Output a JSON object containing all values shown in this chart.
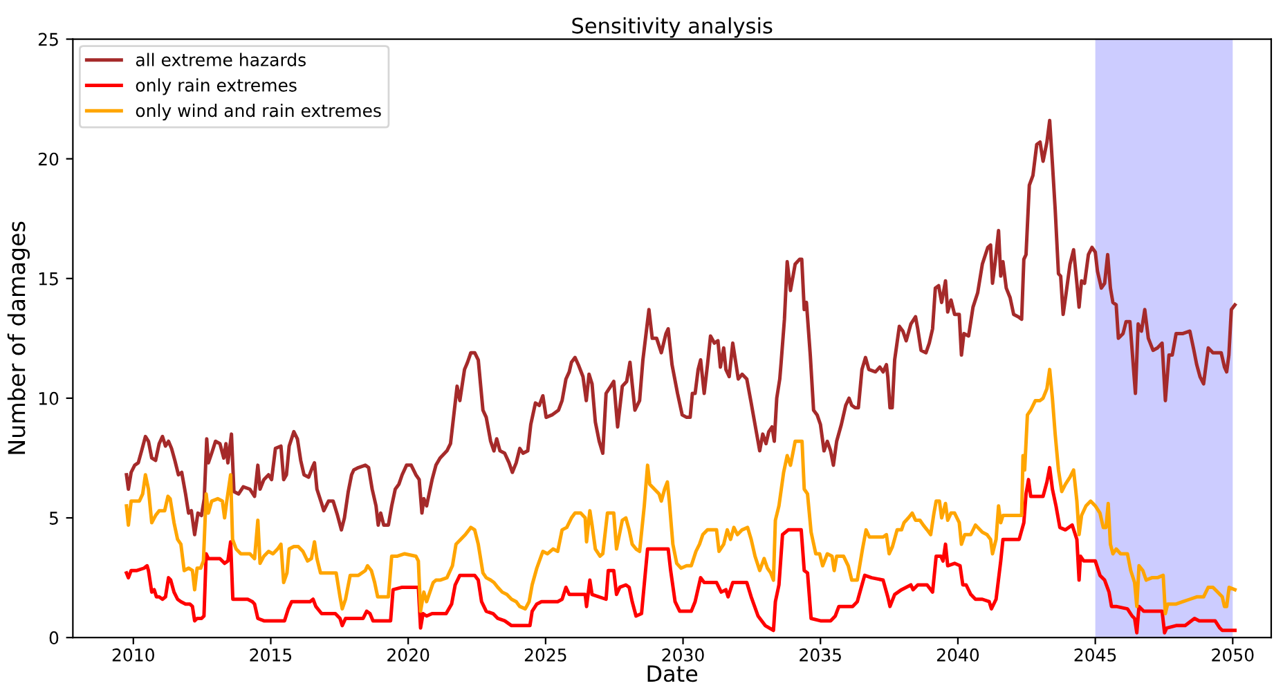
{
  "chart_data": {
    "type": "line",
    "title": "Sensitivity analysis",
    "xlabel": "Date",
    "ylabel": "Number of damages",
    "xlim": [
      2007.8,
      2051.4
    ],
    "xticks": [
      2010,
      2015,
      2020,
      2025,
      2030,
      2035,
      2040,
      2045,
      2050
    ],
    "ylim": [
      0,
      25
    ],
    "yticks": [
      0,
      5,
      10,
      15,
      20,
      25
    ],
    "legend": "top left",
    "bands": [
      {
        "axis": "x",
        "from": 2045,
        "to": 2050,
        "color": "#ccccff"
      }
    ],
    "series": [
      {
        "name": "all extreme hazards",
        "color": "#a52a2a",
        "x": [
          2009.75,
          2009.82,
          2009.92,
          2010.05,
          2010.18,
          2010.3,
          2010.44,
          2010.55,
          2010.67,
          2010.81,
          2010.94,
          2011.06,
          2011.17,
          2011.28,
          2011.39,
          2011.51,
          2011.64,
          2011.76,
          2011.9,
          2012.01,
          2012.11,
          2012.23,
          2012.35,
          2012.48,
          2012.58,
          2012.67,
          2012.73,
          2012.85,
          2012.99,
          2013.15,
          2013.29,
          2013.37,
          2013.44,
          2013.57,
          2013.66,
          2013.83,
          2014.0,
          2014.24,
          2014.41,
          2014.53,
          2014.61,
          2014.75,
          2014.92,
          2015.03,
          2015.17,
          2015.37,
          2015.47,
          2015.57,
          2015.67,
          2015.84,
          2015.97,
          2016.09,
          2016.21,
          2016.38,
          2016.51,
          2016.59,
          2016.68,
          2016.85,
          2016.93,
          2017.1,
          2017.27,
          2017.43,
          2017.57,
          2017.68,
          2017.82,
          2017.94,
          2018.02,
          2018.19,
          2018.44,
          2018.56,
          2018.69,
          2018.83,
          2018.91,
          2019.0,
          2019.11,
          2019.28,
          2019.4,
          2019.53,
          2019.66,
          2019.78,
          2019.94,
          2020.11,
          2020.28,
          2020.4,
          2020.5,
          2020.57,
          2020.67,
          2020.87,
          2021.01,
          2021.16,
          2021.41,
          2021.54,
          2021.66,
          2021.78,
          2021.88,
          2022.05,
          2022.16,
          2022.28,
          2022.42,
          2022.55,
          2022.72,
          2022.84,
          2023.0,
          2023.12,
          2023.22,
          2023.34,
          2023.51,
          2023.67,
          2023.79,
          2023.93,
          2024.06,
          2024.18,
          2024.35,
          2024.46,
          2024.63,
          2024.77,
          2024.9,
          2025.02,
          2025.23,
          2025.47,
          2025.6,
          2025.74,
          2025.86,
          2025.94,
          2026.07,
          2026.19,
          2026.36,
          2026.48,
          2026.58,
          2026.69,
          2026.81,
          2026.95,
          2027.08,
          2027.2,
          2027.37,
          2027.48,
          2027.62,
          2027.79,
          2027.95,
          2028.07,
          2028.15,
          2028.25,
          2028.42,
          2028.54,
          2028.76,
          2028.88,
          2029.04,
          2029.21,
          2029.38,
          2029.46,
          2029.6,
          2029.8,
          2029.97,
          2030.13,
          2030.26,
          2030.34,
          2030.44,
          2030.55,
          2030.64,
          2030.77,
          2030.89,
          2031.0,
          2031.14,
          2031.27,
          2031.36,
          2031.48,
          2031.56,
          2031.68,
          2031.81,
          2031.93,
          2032.01,
          2032.15,
          2032.32,
          2032.48,
          2032.65,
          2032.79,
          2032.9,
          2033.02,
          2033.12,
          2033.24,
          2033.32,
          2033.41,
          2033.52,
          2033.57,
          2033.69,
          2033.79,
          2033.91,
          2034.08,
          2034.24,
          2034.32,
          2034.41,
          2034.49,
          2034.63,
          2034.75,
          2034.88,
          2035.0,
          2035.13,
          2035.25,
          2035.37,
          2035.47,
          2035.59,
          2035.76,
          2035.92,
          2036.04,
          2036.14,
          2036.26,
          2036.38,
          2036.51,
          2036.64,
          2036.76,
          2037.0,
          2037.16,
          2037.28,
          2037.4,
          2037.45,
          2037.53,
          2037.61,
          2037.7,
          2037.87,
          2038.0,
          2038.12,
          2038.29,
          2038.46,
          2038.54,
          2038.66,
          2038.84,
          2038.96,
          2039.08,
          2039.18,
          2039.3,
          2039.41,
          2039.55,
          2039.63,
          2039.75,
          2039.88,
          2040.05,
          2040.13,
          2040.22,
          2040.39,
          2040.55,
          2040.72,
          2040.89,
          2041.09,
          2041.19,
          2041.26,
          2041.36,
          2041.48,
          2041.56,
          2041.64,
          2041.76,
          2041.9,
          2042.03,
          2042.2,
          2042.32,
          2042.4,
          2042.48,
          2042.6,
          2042.73,
          2042.87,
          2042.99,
          2043.1,
          2043.24,
          2043.34,
          2043.44,
          2043.54,
          2043.66,
          2043.74,
          2043.83,
          2043.94,
          2044.08,
          2044.21,
          2044.33,
          2044.41,
          2044.5,
          2044.61,
          2044.75,
          2044.88,
          2045.0,
          2045.08,
          2045.22,
          2045.34,
          2045.45,
          2045.55,
          2045.64,
          2045.76,
          2045.84,
          2046.01,
          2046.12,
          2046.26,
          2046.34,
          2046.46,
          2046.56,
          2046.68,
          2046.8,
          2046.93,
          2047.1,
          2047.26,
          2047.43,
          2047.55,
          2047.68,
          2047.8,
          2047.94,
          2048.19,
          2048.44,
          2048.57,
          2048.69,
          2048.81,
          2048.94,
          2049.11,
          2049.28,
          2049.45,
          2049.58,
          2049.7,
          2049.78,
          2049.86,
          2049.95,
          2050.08
        ],
        "values": [
          6.8,
          6.2,
          6.9,
          7.2,
          7.3,
          7.8,
          8.4,
          8.2,
          7.5,
          7.4,
          8.1,
          8.4,
          8.0,
          8.2,
          7.9,
          7.4,
          6.8,
          6.9,
          6.0,
          5.2,
          5.3,
          4.3,
          5.2,
          5.1,
          5.8,
          8.3,
          7.3,
          7.7,
          8.2,
          8.1,
          7.5,
          8.1,
          7.3,
          8.5,
          6.1,
          6.0,
          6.3,
          6.2,
          5.9,
          7.2,
          6.2,
          6.6,
          6.8,
          6.6,
          7.9,
          8.0,
          6.6,
          6.8,
          8.0,
          8.6,
          8.3,
          7.4,
          6.8,
          6.7,
          7.1,
          7.3,
          6.2,
          5.6,
          5.3,
          5.7,
          5.7,
          5.1,
          4.5,
          5.0,
          6.1,
          6.8,
          7.0,
          7.1,
          7.2,
          7.1,
          6.2,
          5.5,
          4.7,
          5.2,
          4.7,
          4.7,
          5.5,
          6.2,
          6.4,
          6.8,
          7.2,
          7.2,
          6.8,
          6.6,
          5.2,
          5.8,
          5.5,
          6.6,
          7.2,
          7.5,
          7.8,
          8.1,
          9.3,
          10.5,
          9.9,
          11.2,
          11.5,
          11.9,
          11.9,
          11.6,
          9.5,
          9.2,
          8.2,
          7.8,
          8.3,
          7.8,
          7.7,
          7.3,
          6.9,
          7.3,
          7.9,
          7.7,
          7.8,
          8.9,
          9.8,
          9.7,
          10.1,
          9.2,
          9.3,
          9.5,
          9.9,
          10.8,
          11.1,
          11.5,
          11.7,
          11.4,
          10.9,
          9.9,
          11.0,
          10.6,
          9.0,
          8.2,
          7.7,
          10.2,
          10.5,
          10.7,
          8.8,
          10.5,
          10.7,
          11.5,
          10.6,
          9.5,
          9.9,
          11.6,
          13.7,
          12.5,
          12.5,
          11.9,
          12.7,
          12.9,
          11.4,
          10.2,
          9.3,
          9.2,
          9.2,
          10.2,
          10.2,
          11.2,
          11.6,
          10.2,
          11.4,
          12.6,
          12.3,
          12.4,
          11.3,
          12.1,
          11.2,
          10.9,
          12.3,
          11.4,
          10.8,
          11.0,
          10.8,
          9.8,
          8.7,
          7.8,
          8.5,
          8.1,
          8.6,
          8.8,
          8.2,
          10.0,
          10.8,
          11.5,
          13.3,
          15.7,
          14.5,
          15.6,
          15.8,
          15.8,
          13.7,
          14.0,
          11.8,
          9.5,
          9.3,
          8.9,
          7.8,
          8.2,
          7.8,
          7.2,
          8.2,
          8.9,
          9.7,
          10.0,
          9.7,
          9.6,
          9.6,
          11.2,
          11.7,
          11.2,
          11.1,
          11.3,
          11.1,
          11.4,
          10.9,
          9.6,
          9.6,
          11.6,
          13.0,
          12.8,
          12.4,
          13.1,
          13.4,
          12.9,
          12.0,
          11.9,
          12.3,
          12.9,
          14.6,
          14.7,
          14.0,
          14.9,
          13.6,
          14.1,
          13.5,
          13.5,
          11.8,
          12.7,
          12.6,
          13.8,
          14.4,
          15.6,
          16.3,
          16.4,
          14.8,
          15.7,
          17.0,
          15.1,
          15.7,
          14.6,
          14.2,
          13.5,
          13.4,
          13.3,
          15.8,
          16.0,
          18.9,
          19.3,
          20.6,
          20.7,
          19.9,
          20.7,
          21.6,
          19.8,
          17.9,
          15.2,
          15.1,
          13.5,
          14.4,
          15.6,
          16.2,
          14.8,
          13.8,
          14.9,
          14.8,
          16.0,
          16.3,
          16.1,
          15.3,
          14.6,
          14.8,
          16.0,
          14.6,
          14.0,
          13.9,
          12.5,
          12.7,
          13.2,
          13.2,
          12.0,
          10.2,
          13.1,
          12.8,
          13.7,
          12.5,
          12.0,
          12.1,
          12.3,
          9.9,
          11.8,
          11.8,
          12.7,
          12.7,
          12.8,
          12.1,
          11.4,
          10.9,
          10.6,
          12.1,
          11.9,
          11.9,
          11.9,
          11.3,
          11.1,
          11.8,
          13.7,
          13.9
        ]
      },
      {
        "name": "only rain extremes",
        "color": "#ff0000",
        "x": [
          2009.75,
          2009.82,
          2009.92,
          2010.13,
          2010.39,
          2010.5,
          2010.55,
          2010.67,
          2010.76,
          2010.84,
          2010.94,
          2011.06,
          2011.17,
          2011.28,
          2011.36,
          2011.48,
          2011.61,
          2011.73,
          2011.9,
          2012.06,
          2012.15,
          2012.23,
          2012.32,
          2012.48,
          2012.57,
          2012.65,
          2012.73,
          2012.9,
          2013.15,
          2013.32,
          2013.44,
          2013.54,
          2013.62,
          2013.83,
          2014.16,
          2014.33,
          2014.41,
          2014.53,
          2014.75,
          2015.08,
          2015.42,
          2015.5,
          2015.64,
          2015.76,
          2016.17,
          2016.43,
          2016.54,
          2016.64,
          2016.85,
          2017.35,
          2017.52,
          2017.6,
          2017.72,
          2017.85,
          2018.36,
          2018.49,
          2018.61,
          2018.72,
          2019.36,
          2019.45,
          2019.78,
          2020.37,
          2020.45,
          2020.54,
          2020.67,
          2020.87,
          2021.38,
          2021.58,
          2021.71,
          2021.88,
          2022.08,
          2022.42,
          2022.55,
          2022.67,
          2022.84,
          2023.09,
          2023.26,
          2023.51,
          2023.76,
          2024.09,
          2024.43,
          2024.51,
          2024.68,
          2024.85,
          2025.44,
          2025.6,
          2025.74,
          2025.86,
          2026.44,
          2026.49,
          2026.61,
          2026.69,
          2027.2,
          2027.28,
          2027.48,
          2027.58,
          2027.7,
          2027.92,
          2028.04,
          2028.15,
          2028.29,
          2028.49,
          2028.62,
          2028.71,
          2029.46,
          2029.55,
          2029.71,
          2029.88,
          2030.3,
          2030.44,
          2030.64,
          2030.77,
          2031.22,
          2031.39,
          2031.56,
          2031.64,
          2031.81,
          2032.32,
          2032.48,
          2032.73,
          2032.99,
          2033.29,
          2033.36,
          2033.49,
          2033.62,
          2033.83,
          2034.3,
          2034.41,
          2034.53,
          2034.66,
          2035.0,
          2035.08,
          2035.37,
          2035.54,
          2035.67,
          2036.17,
          2036.34,
          2036.51,
          2036.61,
          2036.86,
          2037.28,
          2037.45,
          2037.53,
          2037.7,
          2037.95,
          2038.29,
          2038.37,
          2038.54,
          2038.88,
          2039.08,
          2039.21,
          2039.38,
          2039.46,
          2039.55,
          2039.63,
          2039.88,
          2040.08,
          2040.18,
          2040.3,
          2040.47,
          2040.64,
          2040.89,
          2041.14,
          2041.22,
          2041.39,
          2041.56,
          2041.64,
          2042.23,
          2042.4,
          2042.48,
          2042.57,
          2042.65,
          2042.9,
          2043.1,
          2043.24,
          2043.34,
          2043.44,
          2043.57,
          2043.71,
          2043.91,
          2044.16,
          2044.33,
          2044.41,
          2044.46,
          2044.58,
          2045.0,
          2045.17,
          2045.34,
          2045.5,
          2045.59,
          2045.76,
          2046.17,
          2046.34,
          2046.43,
          2046.51,
          2046.59,
          2046.76,
          2047.18,
          2047.43,
          2047.52,
          2047.6,
          2047.94,
          2048.27,
          2048.61,
          2048.78,
          2049.11,
          2049.36,
          2049.53,
          2049.62,
          2050.08
        ],
        "values": [
          2.7,
          2.5,
          2.8,
          2.8,
          2.9,
          3.0,
          2.8,
          1.9,
          2.0,
          1.7,
          1.7,
          1.6,
          1.7,
          2.5,
          2.4,
          1.9,
          1.6,
          1.5,
          1.4,
          1.4,
          1.3,
          0.7,
          0.8,
          0.8,
          0.9,
          3.5,
          3.3,
          3.3,
          3.3,
          3.1,
          3.2,
          4.0,
          1.6,
          1.6,
          1.6,
          1.5,
          1.4,
          0.8,
          0.7,
          0.7,
          0.7,
          0.7,
          1.2,
          1.5,
          1.5,
          1.5,
          1.6,
          1.3,
          1.0,
          1.0,
          0.8,
          0.5,
          0.8,
          0.8,
          0.8,
          1.1,
          1.0,
          0.7,
          0.7,
          2.0,
          2.1,
          2.1,
          0.4,
          1.0,
          0.9,
          1.0,
          1.0,
          1.4,
          2.2,
          2.6,
          2.6,
          2.6,
          2.4,
          1.5,
          1.1,
          1.0,
          0.8,
          0.7,
          0.5,
          0.5,
          0.5,
          1.1,
          1.4,
          1.5,
          1.5,
          1.6,
          2.1,
          1.8,
          1.8,
          1.3,
          2.4,
          1.8,
          1.6,
          2.8,
          2.8,
          1.8,
          2.1,
          2.2,
          2.1,
          1.5,
          0.9,
          1.0,
          2.6,
          3.7,
          3.7,
          2.8,
          1.5,
          1.1,
          1.1,
          1.5,
          2.5,
          2.3,
          2.3,
          1.9,
          2.0,
          1.7,
          2.3,
          2.3,
          1.7,
          0.9,
          0.5,
          0.3,
          1.5,
          2.2,
          4.3,
          4.5,
          4.5,
          2.8,
          2.7,
          0.8,
          0.7,
          0.7,
          0.7,
          0.9,
          1.3,
          1.3,
          1.5,
          2.2,
          2.6,
          2.5,
          2.4,
          1.7,
          1.3,
          1.8,
          2.0,
          2.2,
          2.0,
          2.2,
          2.2,
          1.9,
          3.4,
          3.4,
          3.2,
          3.9,
          3.0,
          3.1,
          3.0,
          2.2,
          2.2,
          1.8,
          1.6,
          1.6,
          1.5,
          1.2,
          1.6,
          3.2,
          4.1,
          4.1,
          4.8,
          6.0,
          6.6,
          5.9,
          5.9,
          5.9,
          6.5,
          7.1,
          6.2,
          5.5,
          4.6,
          4.5,
          4.7,
          4.1,
          2.4,
          3.4,
          3.2,
          3.2,
          2.6,
          2.4,
          1.9,
          1.3,
          1.3,
          1.2,
          0.9,
          0.8,
          0.2,
          1.3,
          1.1,
          1.1,
          1.1,
          0.2,
          0.4,
          0.5,
          0.5,
          0.8,
          0.7,
          0.7,
          0.7,
          0.4,
          0.3,
          0.3
        ]
      },
      {
        "name": "only wind and rain extremes",
        "color": "#ffa500",
        "x": [
          2009.75,
          2009.82,
          2009.92,
          2010.05,
          2010.22,
          2010.34,
          2010.44,
          2010.55,
          2010.67,
          2010.81,
          2010.94,
          2011.14,
          2011.26,
          2011.34,
          2011.48,
          2011.61,
          2011.73,
          2011.85,
          2012.01,
          2012.15,
          2012.23,
          2012.32,
          2012.45,
          2012.55,
          2012.65,
          2012.73,
          2012.85,
          2013.07,
          2013.24,
          2013.32,
          2013.4,
          2013.54,
          2013.61,
          2013.74,
          2013.91,
          2014.24,
          2014.41,
          2014.53,
          2014.61,
          2014.75,
          2014.92,
          2015.08,
          2015.25,
          2015.37,
          2015.47,
          2015.59,
          2015.67,
          2015.84,
          2016.0,
          2016.17,
          2016.34,
          2016.48,
          2016.59,
          2016.68,
          2016.81,
          2017.18,
          2017.38,
          2017.52,
          2017.6,
          2017.72,
          2017.89,
          2018.19,
          2018.44,
          2018.52,
          2018.66,
          2018.78,
          2018.89,
          2019.28,
          2019.4,
          2019.61,
          2019.87,
          2020.28,
          2020.37,
          2020.45,
          2020.57,
          2020.67,
          2020.79,
          2020.91,
          2021.01,
          2021.16,
          2021.41,
          2021.61,
          2021.74,
          2021.91,
          2022.08,
          2022.28,
          2022.42,
          2022.55,
          2022.72,
          2022.84,
          2023.0,
          2023.12,
          2023.26,
          2023.42,
          2023.59,
          2023.76,
          2023.93,
          2024.06,
          2024.26,
          2024.4,
          2024.51,
          2024.68,
          2024.9,
          2025.07,
          2025.27,
          2025.44,
          2025.6,
          2025.77,
          2025.94,
          2026.07,
          2026.28,
          2026.44,
          2026.49,
          2026.61,
          2026.69,
          2026.81,
          2026.98,
          2027.08,
          2027.25,
          2027.48,
          2027.58,
          2027.65,
          2027.79,
          2027.92,
          2028.04,
          2028.15,
          2028.29,
          2028.42,
          2028.59,
          2028.71,
          2028.79,
          2028.96,
          2029.13,
          2029.21,
          2029.33,
          2029.43,
          2029.5,
          2029.63,
          2029.77,
          2029.93,
          2030.13,
          2030.3,
          2030.47,
          2030.6,
          2030.72,
          2030.89,
          2031.22,
          2031.31,
          2031.48,
          2031.61,
          2031.73,
          2031.85,
          2031.98,
          2032.15,
          2032.35,
          2032.48,
          2032.62,
          2032.79,
          2032.95,
          2033.07,
          2033.19,
          2033.29,
          2033.36,
          2033.49,
          2033.66,
          2033.79,
          2033.91,
          2034.08,
          2034.33,
          2034.41,
          2034.53,
          2034.66,
          2034.83,
          2034.97,
          2035.08,
          2035.25,
          2035.42,
          2035.5,
          2035.59,
          2035.84,
          2036.01,
          2036.14,
          2036.34,
          2036.53,
          2036.66,
          2036.78,
          2037.03,
          2037.28,
          2037.4,
          2037.5,
          2037.62,
          2037.79,
          2037.95,
          2038.04,
          2038.2,
          2038.34,
          2038.46,
          2038.62,
          2038.74,
          2038.88,
          2039.01,
          2039.13,
          2039.21,
          2039.33,
          2039.41,
          2039.55,
          2039.63,
          2039.75,
          2039.88,
          2040.05,
          2040.13,
          2040.25,
          2040.47,
          2040.64,
          2040.89,
          2041.06,
          2041.19,
          2041.26,
          2041.39,
          2041.48,
          2041.56,
          2041.64,
          2041.81,
          2042.06,
          2042.32,
          2042.37,
          2042.43,
          2042.53,
          2042.65,
          2042.82,
          2042.99,
          2043.1,
          2043.24,
          2043.34,
          2043.44,
          2043.54,
          2043.66,
          2043.78,
          2043.91,
          2044.08,
          2044.21,
          2044.33,
          2044.41,
          2044.5,
          2044.66,
          2044.83,
          2045.0,
          2045.17,
          2045.29,
          2045.39,
          2045.47,
          2045.55,
          2045.64,
          2045.76,
          2045.92,
          2046.17,
          2046.29,
          2046.43,
          2046.51,
          2046.59,
          2046.73,
          2046.85,
          2047.06,
          2047.26,
          2047.47,
          2047.55,
          2047.63,
          2047.77,
          2047.94,
          2048.19,
          2048.44,
          2048.69,
          2048.94,
          2049.11,
          2049.28,
          2049.45,
          2049.62,
          2049.7,
          2049.78,
          2049.87,
          2050.08
        ],
        "values": [
          5.5,
          4.7,
          5.7,
          5.7,
          5.7,
          6.0,
          6.8,
          6.2,
          4.8,
          5.1,
          5.3,
          5.3,
          5.9,
          5.8,
          4.8,
          4.1,
          3.9,
          2.8,
          2.9,
          2.8,
          2.0,
          2.9,
          2.9,
          3.2,
          6.0,
          5.2,
          5.7,
          5.8,
          5.7,
          5.0,
          5.7,
          6.8,
          4.1,
          3.7,
          3.5,
          3.5,
          3.3,
          4.9,
          3.1,
          3.4,
          3.6,
          3.5,
          3.7,
          3.9,
          2.3,
          2.7,
          3.7,
          3.8,
          3.8,
          3.6,
          3.2,
          3.3,
          4.0,
          3.3,
          2.7,
          2.7,
          2.7,
          1.7,
          1.2,
          1.6,
          2.6,
          2.6,
          2.8,
          3.0,
          2.8,
          2.3,
          1.7,
          1.7,
          3.4,
          3.4,
          3.5,
          3.4,
          3.2,
          1.1,
          1.9,
          1.5,
          1.9,
          2.3,
          2.4,
          2.4,
          2.5,
          3.0,
          3.9,
          4.1,
          4.3,
          4.6,
          4.5,
          3.9,
          2.7,
          2.5,
          2.4,
          2.3,
          2.1,
          1.9,
          1.8,
          1.6,
          1.5,
          1.3,
          1.2,
          1.5,
          2.2,
          2.9,
          3.6,
          3.5,
          3.7,
          3.6,
          4.5,
          4.6,
          5.0,
          5.2,
          5.2,
          5.0,
          4.0,
          5.3,
          4.7,
          3.7,
          3.4,
          3.5,
          5.2,
          5.2,
          3.7,
          4.1,
          4.9,
          5.0,
          4.5,
          3.9,
          3.7,
          3.6,
          5.5,
          7.2,
          6.4,
          6.2,
          6.0,
          5.7,
          6.2,
          6.5,
          5.7,
          3.9,
          3.1,
          2.9,
          3.0,
          3.0,
          3.6,
          3.9,
          4.3,
          4.5,
          4.5,
          3.6,
          3.9,
          4.5,
          4.1,
          4.6,
          4.3,
          4.5,
          4.6,
          4.1,
          3.4,
          2.8,
          3.3,
          2.9,
          2.7,
          2.4,
          4.9,
          5.5,
          6.9,
          7.6,
          7.2,
          8.2,
          8.2,
          6.2,
          6.0,
          4.4,
          3.5,
          3.5,
          3.0,
          3.5,
          3.4,
          2.8,
          3.4,
          3.4,
          3.0,
          2.4,
          2.4,
          3.7,
          4.5,
          4.2,
          4.2,
          4.2,
          4.3,
          3.5,
          3.8,
          4.5,
          4.5,
          4.8,
          5.0,
          5.2,
          4.9,
          4.9,
          4.7,
          4.5,
          4.3,
          5.2,
          5.7,
          5.7,
          5.0,
          5.6,
          4.9,
          5.2,
          5.2,
          4.8,
          3.9,
          4.3,
          4.3,
          4.7,
          4.4,
          4.3,
          4.1,
          3.5,
          4.1,
          5.5,
          4.8,
          5.1,
          5.1,
          5.1,
          5.1,
          7.6,
          7.0,
          9.3,
          9.5,
          9.9,
          9.9,
          10.0,
          10.4,
          11.2,
          10.0,
          8.5,
          7.0,
          6.1,
          6.4,
          6.7,
          7.0,
          5.7,
          4.3,
          5.1,
          5.5,
          5.7,
          5.5,
          5.2,
          4.6,
          4.6,
          5.6,
          3.9,
          3.5,
          3.7,
          3.5,
          3.5,
          2.8,
          2.3,
          1.3,
          3.0,
          2.8,
          2.4,
          2.5,
          2.5,
          2.6,
          1.0,
          1.4,
          1.4,
          1.4,
          1.5,
          1.6,
          1.7,
          1.7,
          2.1,
          2.1,
          1.9,
          1.7,
          1.3,
          1.3,
          2.1,
          2.0
        ]
      }
    ]
  }
}
